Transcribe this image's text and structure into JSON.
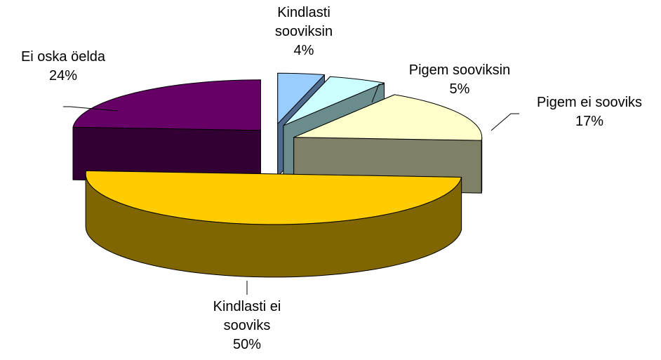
{
  "chart_data": {
    "type": "pie",
    "categories": [
      "Kindlasti sooviksin",
      "Pigem sooviksin",
      "Pigem ei sooviks",
      "Kindlasti ei sooviks",
      "Ei oska öelda"
    ],
    "values": [
      4,
      5,
      17,
      50,
      24
    ],
    "value_labels": [
      "4%",
      "5%",
      "17%",
      "50%",
      "24%"
    ],
    "colors": [
      "#99ccff",
      "#ccffff",
      "#ffffcc",
      "#ffcc00",
      "#660066"
    ],
    "side_colors": [
      "#4f6a8c",
      "#6a8c8c",
      "#808066",
      "#806600",
      "#330033"
    ]
  }
}
